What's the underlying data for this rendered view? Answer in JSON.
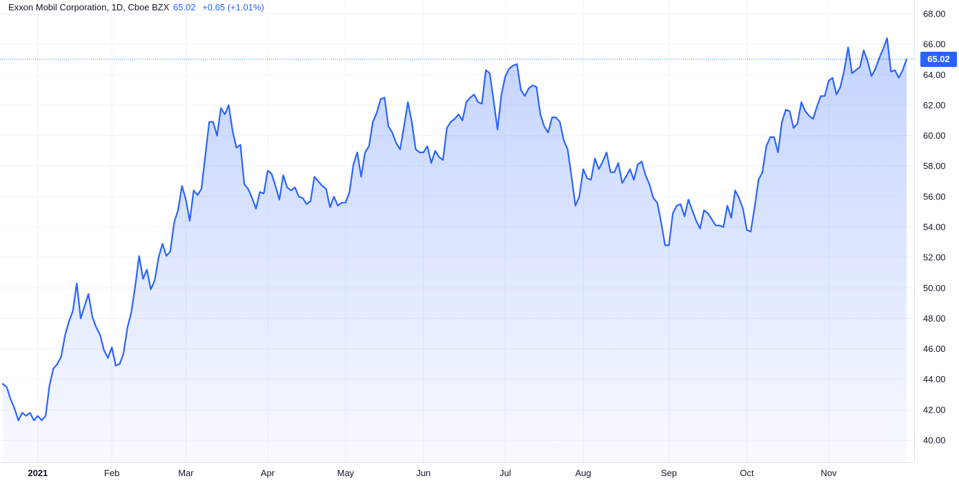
{
  "legend": {
    "symbol": "Exxon Mobil Corporation, 1D, Cboe BZX",
    "last": "65.02",
    "change": "+0.65 (+1.01%)"
  },
  "colors": {
    "line": "#2962ff",
    "grid": "#f0f3fa",
    "text": "#131722"
  },
  "chart_data": {
    "type": "area",
    "title": "",
    "xlabel": "",
    "ylabel": "",
    "ylim": [
      39.0,
      69.0
    ],
    "y_ticks": [
      "40.00",
      "42.00",
      "44.00",
      "46.00",
      "48.00",
      "50.00",
      "52.00",
      "54.00",
      "56.00",
      "58.00",
      "60.00",
      "62.00",
      "64.00",
      "66.00",
      "68.00"
    ],
    "x_ticks": [
      {
        "label": "2021",
        "index": 9
      },
      {
        "label": "Feb",
        "index": 28
      },
      {
        "label": "Mar",
        "index": 47
      },
      {
        "label": "Apr",
        "index": 68
      },
      {
        "label": "May",
        "index": 88
      },
      {
        "label": "Jun",
        "index": 108
      },
      {
        "label": "Jul",
        "index": 129
      },
      {
        "label": "Aug",
        "index": 149
      },
      {
        "label": "Sep",
        "index": 171
      },
      {
        "label": "Oct",
        "index": 191
      },
      {
        "label": "Nov",
        "index": 212
      }
    ],
    "last_price": 65.02,
    "last_price_label": "65.02",
    "series": [
      {
        "values": [
          43.7,
          43.5,
          42.7,
          42.1,
          41.3,
          41.8,
          41.6,
          41.8,
          41.3,
          41.6,
          41.3,
          41.6,
          43.6,
          44.7,
          45.0,
          45.5,
          46.9,
          47.8,
          48.5,
          50.3,
          48.0,
          48.8,
          49.6,
          48.1,
          47.4,
          46.9,
          45.9,
          45.4,
          46.1,
          44.9,
          45.0,
          45.7,
          47.4,
          48.4,
          50.1,
          52.1,
          50.6,
          51.2,
          49.9,
          50.5,
          52.0,
          52.9,
          52.1,
          52.4,
          54.3,
          55.1,
          56.7,
          55.8,
          54.4,
          56.4,
          56.1,
          56.5,
          58.7,
          60.9,
          60.9,
          60.0,
          61.8,
          61.4,
          62.0,
          60.3,
          59.2,
          59.4,
          56.8,
          56.5,
          55.9,
          55.2,
          56.3,
          56.2,
          57.7,
          57.5,
          56.7,
          55.8,
          57.4,
          56.6,
          56.4,
          56.6,
          56.0,
          55.9,
          55.5,
          55.7,
          57.3,
          57.0,
          56.7,
          56.5,
          55.3,
          56.0,
          55.4,
          55.6,
          55.6,
          56.3,
          58.1,
          58.9,
          57.3,
          58.9,
          59.3,
          60.9,
          61.5,
          62.4,
          62.5,
          60.6,
          60.2,
          59.5,
          59.1,
          60.6,
          62.2,
          60.9,
          59.1,
          58.9,
          58.9,
          59.3,
          58.2,
          59.0,
          58.6,
          58.4,
          60.5,
          60.9,
          61.1,
          61.4,
          61.0,
          62.2,
          62.5,
          62.7,
          62.2,
          62.1,
          64.3,
          64.1,
          62.3,
          60.4,
          62.7,
          63.9,
          64.4,
          64.6,
          64.7,
          63.0,
          62.6,
          63.1,
          63.3,
          63.2,
          61.4,
          60.6,
          60.2,
          61.2,
          61.2,
          60.9,
          59.7,
          59.1,
          57.3,
          55.4,
          56.0,
          57.8,
          57.2,
          57.1,
          58.5,
          57.8,
          58.3,
          58.9,
          57.6,
          57.6,
          58.2,
          56.9,
          57.3,
          57.8,
          57.1,
          58.1,
          58.3,
          57.4,
          56.8,
          55.9,
          55.6,
          54.3,
          52.8,
          52.8,
          54.9,
          55.4,
          55.5,
          54.7,
          55.8,
          55.1,
          54.4,
          53.9,
          55.1,
          54.9,
          54.5,
          54.1,
          54.1,
          54.0,
          55.4,
          54.6,
          56.4,
          55.9,
          55.2,
          53.8,
          53.7,
          55.3,
          57.1,
          57.6,
          59.3,
          59.9,
          59.9,
          58.9,
          60.9,
          61.7,
          61.6,
          60.5,
          60.8,
          62.2,
          61.6,
          61.3,
          61.1,
          61.9,
          62.6,
          62.6,
          63.6,
          63.8,
          62.7,
          63.2,
          64.3,
          65.8,
          64.1,
          64.3,
          64.5,
          65.6,
          64.9,
          63.9,
          64.4,
          65.1,
          65.7,
          66.4,
          64.2,
          64.3,
          63.8,
          64.3,
          65.02
        ]
      }
    ]
  }
}
